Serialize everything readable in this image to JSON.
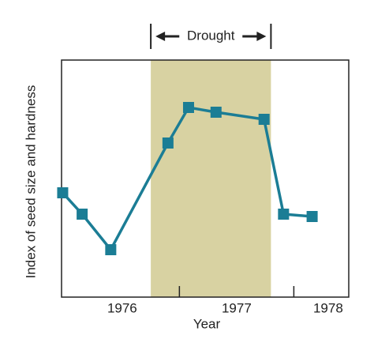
{
  "chart_data": {
    "type": "line",
    "xlabel": "Year",
    "ylabel": "Index of seed size and hardness",
    "x": [
      1975.98,
      1976.15,
      1976.4,
      1976.9,
      1977.08,
      1977.32,
      1977.74,
      1977.91,
      1978.16
    ],
    "series": [
      {
        "color": "#1b7d95",
        "values": [
          4.4,
          3.5,
          2.0,
          6.5,
          8.0,
          7.8,
          7.5,
          3.5,
          3.4
        ]
      }
    ],
    "xlim": [
      1975.97,
      1978.48
    ],
    "xticks": [
      {
        "value": 1976.5,
        "label": "1976"
      },
      {
        "value": 1977.5,
        "label": "1977"
      },
      {
        "value": 1978.3,
        "label": "1978"
      }
    ],
    "xtick_marks": [
      1977,
      1978
    ],
    "ylim": [
      0,
      10
    ],
    "shaded_region": {
      "label": "Drought",
      "range": [
        1976.75,
        1977.8
      ],
      "color": "#d8d2a2"
    }
  }
}
